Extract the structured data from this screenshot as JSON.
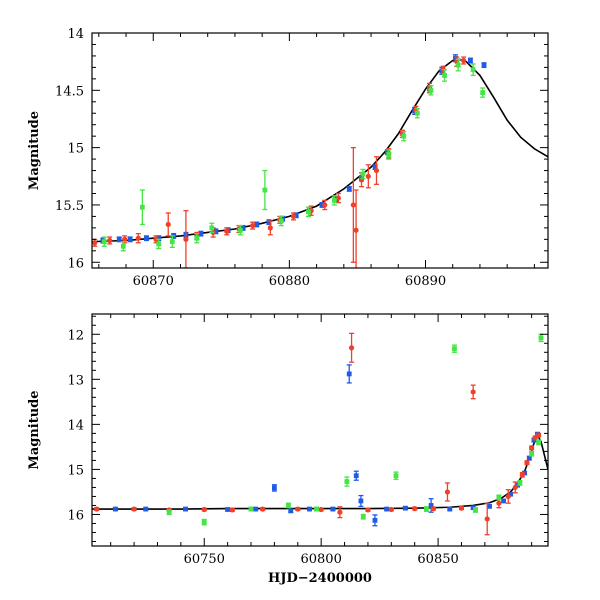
{
  "colors": {
    "blue": "#1f5be6",
    "red": "#f0402a",
    "green": "#44e544",
    "model": "#000000"
  },
  "chart_data": [
    {
      "type": "scatter",
      "title": "",
      "xlabel": "",
      "ylabel": "Magnitude",
      "xlim": [
        60865.5,
        60899
      ],
      "ylim": [
        14,
        16.05
      ],
      "y_inverted": true,
      "x_ticks": [
        60870,
        60880,
        60890
      ],
      "x_tick_labels": [
        "60870",
        "60880",
        "60890"
      ],
      "y_ticks": [
        14,
        14.5,
        15,
        15.5,
        16
      ],
      "y_tick_labels": [
        "14",
        "14.5",
        "15",
        "15.5",
        "16"
      ],
      "legend": "none",
      "model_curve": {
        "color": "black",
        "x": [
          60865.5,
          60868,
          60870,
          60872,
          60874,
          60876,
          60878,
          60880,
          60882,
          60884,
          60886,
          60887,
          60888,
          60889,
          60890,
          60891,
          60892,
          60892.5,
          60893,
          60894,
          60895,
          60896,
          60897,
          60898,
          60899
        ],
        "y": [
          15.82,
          15.81,
          15.79,
          15.77,
          15.74,
          15.71,
          15.66,
          15.6,
          15.51,
          15.36,
          15.17,
          15.04,
          14.88,
          14.68,
          14.49,
          14.33,
          14.24,
          14.23,
          14.25,
          14.37,
          14.56,
          14.76,
          14.91,
          15.01,
          15.08
        ]
      },
      "series": [
        {
          "color": "blue",
          "points": [
            [
              60866.3,
              15.81,
              0.02
            ],
            [
              60867.5,
              15.8,
              0.02
            ],
            [
              60868.3,
              15.8,
              0.02
            ],
            [
              60869.5,
              15.79,
              0.02
            ],
            [
              60870.4,
              15.79,
              0.02
            ],
            [
              60871.5,
              15.77,
              0.02
            ],
            [
              60872.4,
              15.76,
              0.02
            ],
            [
              60873.5,
              15.75,
              0.02
            ],
            [
              60874.6,
              15.73,
              0.02
            ],
            [
              60875.5,
              15.72,
              0.02
            ],
            [
              60876.6,
              15.7,
              0.02
            ],
            [
              60877.6,
              15.67,
              0.02
            ],
            [
              60878.5,
              15.65,
              0.02
            ],
            [
              60879.5,
              15.62,
              0.02
            ],
            [
              60880.5,
              15.59,
              0.02
            ],
            [
              60881.5,
              15.55,
              0.02
            ],
            [
              60882.4,
              15.5,
              0.02
            ],
            [
              60883.4,
              15.45,
              0.02
            ],
            [
              60884.4,
              15.36,
              0.02
            ],
            [
              60885.3,
              15.27,
              0.02
            ],
            [
              60886.3,
              15.17,
              0.02
            ],
            [
              60887.2,
              15.04,
              0.02
            ],
            [
              60888.3,
              14.87,
              0.02
            ],
            [
              60889.2,
              14.68,
              0.03
            ],
            [
              60890.3,
              14.49,
              0.03
            ],
            [
              60891.2,
              14.33,
              0.03
            ],
            [
              60892.2,
              14.22,
              0.03
            ],
            [
              60893.3,
              14.24,
              0.02
            ],
            [
              60894.3,
              14.28,
              0.02
            ]
          ]
        },
        {
          "color": "red",
          "points": [
            [
              60865.7,
              15.83,
              0.03
            ],
            [
              60866.8,
              15.81,
              0.03
            ],
            [
              60867.9,
              15.8,
              0.03
            ],
            [
              60868.9,
              15.79,
              0.04
            ],
            [
              60870.2,
              15.8,
              0.03
            ],
            [
              60871.1,
              15.67,
              0.1
            ],
            [
              60872.4,
              15.8,
              0.25
            ],
            [
              60873.2,
              15.77,
              0.03
            ],
            [
              60874.4,
              15.74,
              0.04
            ],
            [
              60875.4,
              15.73,
              0.03
            ],
            [
              60876.3,
              15.71,
              0.03
            ],
            [
              60877.3,
              15.68,
              0.03
            ],
            [
              60878.6,
              15.7,
              0.06
            ],
            [
              60879.3,
              15.63,
              0.03
            ],
            [
              60880.3,
              15.6,
              0.03
            ],
            [
              60881.6,
              15.55,
              0.04
            ],
            [
              60882.6,
              15.5,
              0.04
            ],
            [
              60883.6,
              15.44,
              0.04
            ],
            [
              60884.7,
              15.5,
              0.5
            ],
            [
              60884.9,
              15.72,
              0.35
            ],
            [
              60885.3,
              15.28,
              0.06
            ],
            [
              60885.8,
              15.25,
              0.1
            ],
            [
              60886.4,
              15.2,
              0.12
            ],
            [
              60887.3,
              15.05,
              0.04
            ],
            [
              60888.3,
              14.88,
              0.03
            ],
            [
              60889.3,
              14.67,
              0.03
            ],
            [
              60890.3,
              14.48,
              0.04
            ],
            [
              60891.3,
              14.32,
              0.03
            ],
            [
              60892.3,
              14.25,
              0.04
            ],
            [
              60892.8,
              14.24,
              0.03
            ]
          ]
        },
        {
          "color": "green",
          "points": [
            [
              60866.4,
              15.82,
              0.04
            ],
            [
              60867.8,
              15.86,
              0.04
            ],
            [
              60869.2,
              15.52,
              0.15
            ],
            [
              60870.4,
              15.84,
              0.04
            ],
            [
              60871.4,
              15.82,
              0.05
            ],
            [
              60873.2,
              15.79,
              0.04
            ],
            [
              60874.3,
              15.7,
              0.04
            ],
            [
              60876.4,
              15.72,
              0.04
            ],
            [
              60878.2,
              15.37,
              0.17
            ],
            [
              60879.4,
              15.64,
              0.04
            ],
            [
              60881.4,
              15.56,
              0.04
            ],
            [
              60883.3,
              15.46,
              0.04
            ],
            [
              60885.4,
              15.23,
              0.04
            ],
            [
              60887.3,
              15.06,
              0.04
            ],
            [
              60888.4,
              14.9,
              0.04
            ],
            [
              60889.4,
              14.7,
              0.04
            ],
            [
              60890.4,
              14.5,
              0.04
            ],
            [
              60891.4,
              14.37,
              0.05
            ],
            [
              60892.4,
              14.28,
              0.05
            ],
            [
              60893.5,
              14.32,
              0.05
            ],
            [
              60894.2,
              14.52,
              0.04
            ]
          ]
        }
      ]
    },
    {
      "type": "scatter",
      "title": "",
      "xlabel": "HJD−2400000",
      "ylabel": "Magnitude",
      "xlim": [
        60702,
        60897
      ],
      "ylim": [
        11.55,
        16.7
      ],
      "y_inverted": true,
      "x_ticks": [
        60750,
        60800,
        60850
      ],
      "x_tick_labels": [
        "60750",
        "60800",
        "60850"
      ],
      "y_ticks": [
        12,
        13,
        14,
        15,
        16
      ],
      "y_tick_labels": [
        "12",
        "13",
        "14",
        "15",
        "16"
      ],
      "legend": "none",
      "model_curve": {
        "color": "black",
        "x": [
          60702,
          60720,
          60740,
          60760,
          60780,
          60800,
          60820,
          60840,
          60855,
          60865,
          60872,
          60877,
          60881,
          60884,
          60887,
          60889,
          60891,
          60892.5,
          60894,
          60897
        ],
        "y": [
          15.88,
          15.88,
          15.88,
          15.87,
          15.87,
          15.87,
          15.87,
          15.86,
          15.84,
          15.8,
          15.74,
          15.64,
          15.5,
          15.31,
          15.04,
          14.76,
          14.42,
          14.24,
          14.38,
          15.0
        ]
      },
      "series": [
        {
          "color": "blue",
          "points": [
            [
              60712,
              15.88,
              0.03
            ],
            [
              60725,
              15.88,
              0.03
            ],
            [
              60742,
              15.88,
              0.03
            ],
            [
              60760,
              15.89,
              0.03
            ],
            [
              60772,
              15.88,
              0.03
            ],
            [
              60780,
              15.41,
              0.07
            ],
            [
              60787,
              15.92,
              0.03
            ],
            [
              60795,
              15.88,
              0.03
            ],
            [
              60805,
              15.88,
              0.03
            ],
            [
              60812,
              12.88,
              0.2
            ],
            [
              60815,
              15.14,
              0.1
            ],
            [
              60817,
              15.7,
              0.12
            ],
            [
              60823,
              16.13,
              0.12
            ],
            [
              60828,
              15.88,
              0.03
            ],
            [
              60836,
              15.86,
              0.03
            ],
            [
              60847,
              15.8,
              0.15
            ],
            [
              60855,
              15.88,
              0.03
            ],
            [
              60865,
              15.85,
              0.03
            ],
            [
              60872,
              15.82,
              0.03
            ],
            [
              60878,
              15.7,
              0.03
            ],
            [
              60881,
              15.55,
              0.03
            ],
            [
              60884,
              15.35,
              0.03
            ],
            [
              60887,
              15.08,
              0.03
            ],
            [
              60889,
              14.75,
              0.04
            ],
            [
              60891,
              14.35,
              0.04
            ],
            [
              60892.5,
              14.22,
              0.04
            ]
          ]
        },
        {
          "color": "red",
          "points": [
            [
              60704,
              15.88,
              0.03
            ],
            [
              60720,
              15.88,
              0.03
            ],
            [
              60735,
              15.9,
              0.03
            ],
            [
              60750,
              15.89,
              0.03
            ],
            [
              60762,
              15.9,
              0.03
            ],
            [
              60775,
              15.88,
              0.03
            ],
            [
              60790,
              15.88,
              0.03
            ],
            [
              60800,
              15.89,
              0.03
            ],
            [
              60808,
              15.95,
              0.12
            ],
            [
              60813,
              12.3,
              0.32
            ],
            [
              60820,
              15.9,
              0.03
            ],
            [
              60830,
              15.89,
              0.03
            ],
            [
              60840,
              15.87,
              0.03
            ],
            [
              60848,
              15.87,
              0.03
            ],
            [
              60854,
              15.5,
              0.2
            ],
            [
              60860,
              15.86,
              0.03
            ],
            [
              60865,
              13.28,
              0.15
            ],
            [
              60871,
              16.1,
              0.35
            ],
            [
              60876,
              15.75,
              0.1
            ],
            [
              60880,
              15.6,
              0.15
            ],
            [
              60883,
              15.4,
              0.12
            ],
            [
              60886,
              15.12,
              0.05
            ],
            [
              60888,
              14.85,
              0.04
            ],
            [
              60890,
              14.52,
              0.04
            ],
            [
              60891.5,
              14.3,
              0.04
            ],
            [
              60893,
              14.24,
              0.04
            ]
          ]
        },
        {
          "color": "green",
          "points": [
            [
              60735,
              15.95,
              0.05
            ],
            [
              60750,
              16.17,
              0.06
            ],
            [
              60770,
              15.88,
              0.04
            ],
            [
              60786,
              15.8,
              0.05
            ],
            [
              60798,
              15.88,
              0.04
            ],
            [
              60811,
              15.27,
              0.1
            ],
            [
              60818,
              16.05,
              0.05
            ],
            [
              60832,
              15.14,
              0.08
            ],
            [
              60845,
              15.88,
              0.05
            ],
            [
              60857,
              12.32,
              0.08
            ],
            [
              60866,
              15.9,
              0.05
            ],
            [
              60876,
              15.62,
              0.05
            ],
            [
              60885,
              15.3,
              0.05
            ],
            [
              60890,
              14.65,
              0.05
            ],
            [
              60893,
              14.4,
              0.05
            ],
            [
              60894,
              12.08,
              0.08
            ]
          ]
        }
      ]
    }
  ]
}
